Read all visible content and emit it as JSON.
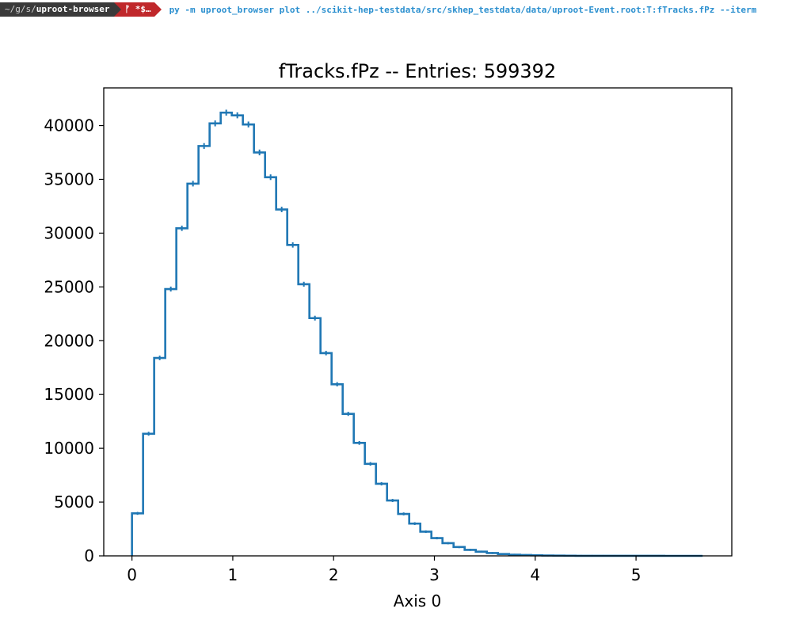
{
  "terminal": {
    "path_prefix": "~/g/s/",
    "path_dir": "uproot-browser",
    "git_status": "ᚠ *$…",
    "command": "py -m uproot_browser plot ../scikit-hep-testdata/src/skhep_testdata/data/uproot-Event.root:T:fTracks.fPz --iterm"
  },
  "chart_data": {
    "type": "histogram",
    "title": "fTracks.fPz -- Entries: 599392",
    "xlabel": "Axis 0",
    "ylabel": "",
    "xlim": [
      -0.28,
      5.95
    ],
    "ylim": [
      0,
      43500
    ],
    "x_ticks": [
      0,
      1,
      2,
      3,
      4,
      5
    ],
    "y_ticks": [
      0,
      5000,
      10000,
      15000,
      20000,
      25000,
      30000,
      35000,
      40000
    ],
    "bin_edges": [
      0.0,
      0.11,
      0.22,
      0.33,
      0.44,
      0.55,
      0.66,
      0.77,
      0.88,
      0.99,
      1.1,
      1.21,
      1.32,
      1.43,
      1.54,
      1.65,
      1.76,
      1.87,
      1.98,
      2.09,
      2.2,
      2.31,
      2.42,
      2.53,
      2.64,
      2.75,
      2.86,
      2.97,
      3.08,
      3.19,
      3.3,
      3.41,
      3.52,
      3.63,
      3.74,
      3.85,
      3.96,
      4.07,
      4.18,
      4.29,
      4.4,
      4.51,
      4.62,
      4.73,
      4.84,
      4.95,
      5.06,
      5.17,
      5.28,
      5.39,
      5.5,
      5.61,
      5.66
    ],
    "values": [
      3950,
      11350,
      18400,
      24800,
      30450,
      34600,
      38100,
      40200,
      41200,
      40950,
      40100,
      37500,
      35200,
      32200,
      28900,
      25250,
      22100,
      18850,
      15950,
      13200,
      10500,
      8550,
      6700,
      5150,
      3900,
      3000,
      2250,
      1650,
      1180,
      820,
      560,
      390,
      260,
      170,
      110,
      75,
      50,
      32,
      20,
      13,
      8,
      5,
      3,
      2,
      1,
      1,
      1,
      1,
      0,
      0,
      0,
      0
    ],
    "grid": false,
    "legend": "none",
    "color": "#1f77b4"
  }
}
